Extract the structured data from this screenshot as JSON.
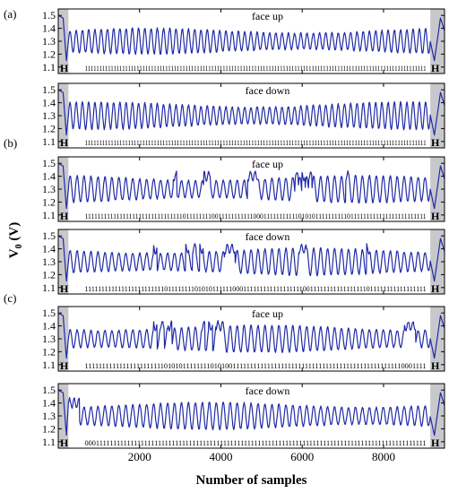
{
  "chart_data": {
    "type": "line",
    "xlabel": "Number of samples",
    "ylabel_main": "V",
    "ylabel_sub": "0",
    "ylabel_unit": "(V)",
    "xlim": [
      0,
      9500
    ],
    "ylim": [
      1.05,
      1.55
    ],
    "x_ticks": [
      2000,
      4000,
      6000,
      8000
    ],
    "x_tick_labels": [
      "2000",
      "4000",
      "6000",
      "8000"
    ],
    "y_ticks": [
      1.1,
      1.2,
      1.3,
      1.4,
      1.5
    ],
    "y_tick_labels": [
      "1.1",
      "1.2",
      "1.3",
      "1.4",
      "1.5"
    ],
    "line_color": "#1f2aa5",
    "header_shade": "#c8c8cc",
    "header_label": "H",
    "groups": [
      {
        "label": "(a)"
      },
      {
        "label": "(b)"
      },
      {
        "label": "(c)"
      }
    ],
    "panels": [
      {
        "group": 0,
        "title": "face up",
        "bits": "11111111111111111111111111111111111111111111111111111111111111111111111111111111111111111111111111111111111111111111111",
        "shade_left": [
          0,
          250
        ],
        "shade_right": [
          9150,
          9500
        ],
        "base_level": 1.3,
        "amplitude": 0.095,
        "cycles": 58
      },
      {
        "group": 0,
        "title": "face down",
        "bits": "11111111111111111111111111111111111111111111111111111111111111111111111111111111111111111111111111111111111111111111111",
        "shade_left": [
          0,
          250
        ],
        "shade_right": [
          9150,
          9500
        ],
        "base_level": 1.3,
        "amplitude": 0.1,
        "cycles": 58
      },
      {
        "group": 1,
        "title": "face up",
        "bits": "11111111111111111111111111111110111111110011111111111000111111111110101011111111110111111111111111111111111",
        "shade_left": [
          0,
          250
        ],
        "shade_right": [
          9150,
          9500
        ],
        "base_level": 1.3,
        "amplitude": 0.1,
        "cycles": 52
      },
      {
        "group": 1,
        "title": "face down",
        "bits": "111111111111111111111111011111111010101111110001111111111111111110011111111111111111011111111111111111",
        "shade_left": [
          0,
          250
        ],
        "shade_right": [
          9150,
          9500
        ],
        "base_level": 1.3,
        "amplitude": 0.1,
        "cycles": 52
      },
      {
        "group": 2,
        "title": "face up",
        "bits": "11111111111111111111111010101111111101010011111111111111111111111111111111111111111111111110001111",
        "shade_left": [
          0,
          250
        ],
        "shade_right": [
          9150,
          9500
        ],
        "base_level": 1.3,
        "amplitude": 0.1,
        "cycles": 52
      },
      {
        "group": 2,
        "title": "face down",
        "bits": "000111111111111111111111111111111111111111111111111111111111111111111111111111111111111111111111111",
        "shade_left": [
          0,
          250
        ],
        "shade_right": [
          9150,
          9500
        ],
        "base_level": 1.3,
        "amplitude": 0.1,
        "cycles": 52
      }
    ]
  }
}
